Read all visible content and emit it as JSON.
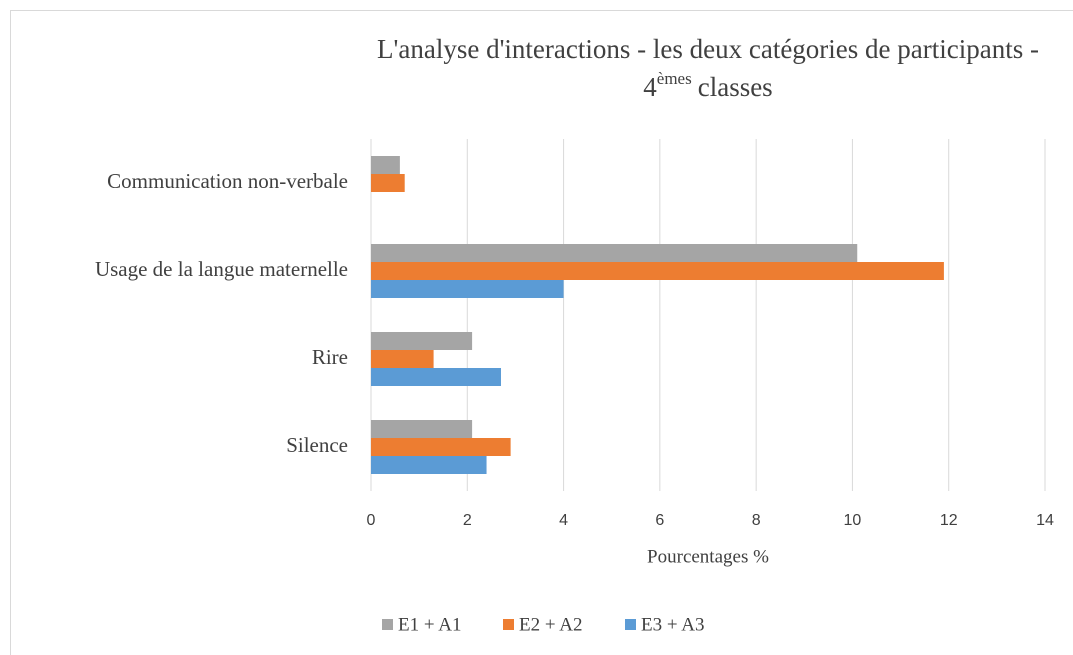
{
  "chart_data": {
    "type": "bar",
    "orientation": "horizontal",
    "title": {
      "line1": "L'analyse d'interactions - les deux catégories de participants -",
      "line2": [
        "4",
        "èmes",
        "classes"
      ]
    },
    "x_label": "Pourcentages %",
    "categories": [
      "Communication non-verbale",
      "Usage de la langue maternelle",
      "Rire",
      "Silence"
    ],
    "series": [
      {
        "name": "E1 + A1",
        "color": "#a5a5a5",
        "values": [
          0.6,
          10.1,
          2.1,
          2.1
        ]
      },
      {
        "name": "E2 + A2",
        "color": "#ed7d31",
        "values": [
          0.7,
          11.9,
          1.3,
          2.9
        ]
      },
      {
        "name": "E3 + A3",
        "color": "#5b9bd5",
        "values": [
          null,
          4.0,
          2.7,
          2.4
        ]
      }
    ],
    "xlim": [
      0,
      14
    ],
    "xticks": [
      0,
      2,
      4,
      6,
      8,
      10,
      12,
      14
    ],
    "grid": true,
    "legend": "bottom"
  }
}
